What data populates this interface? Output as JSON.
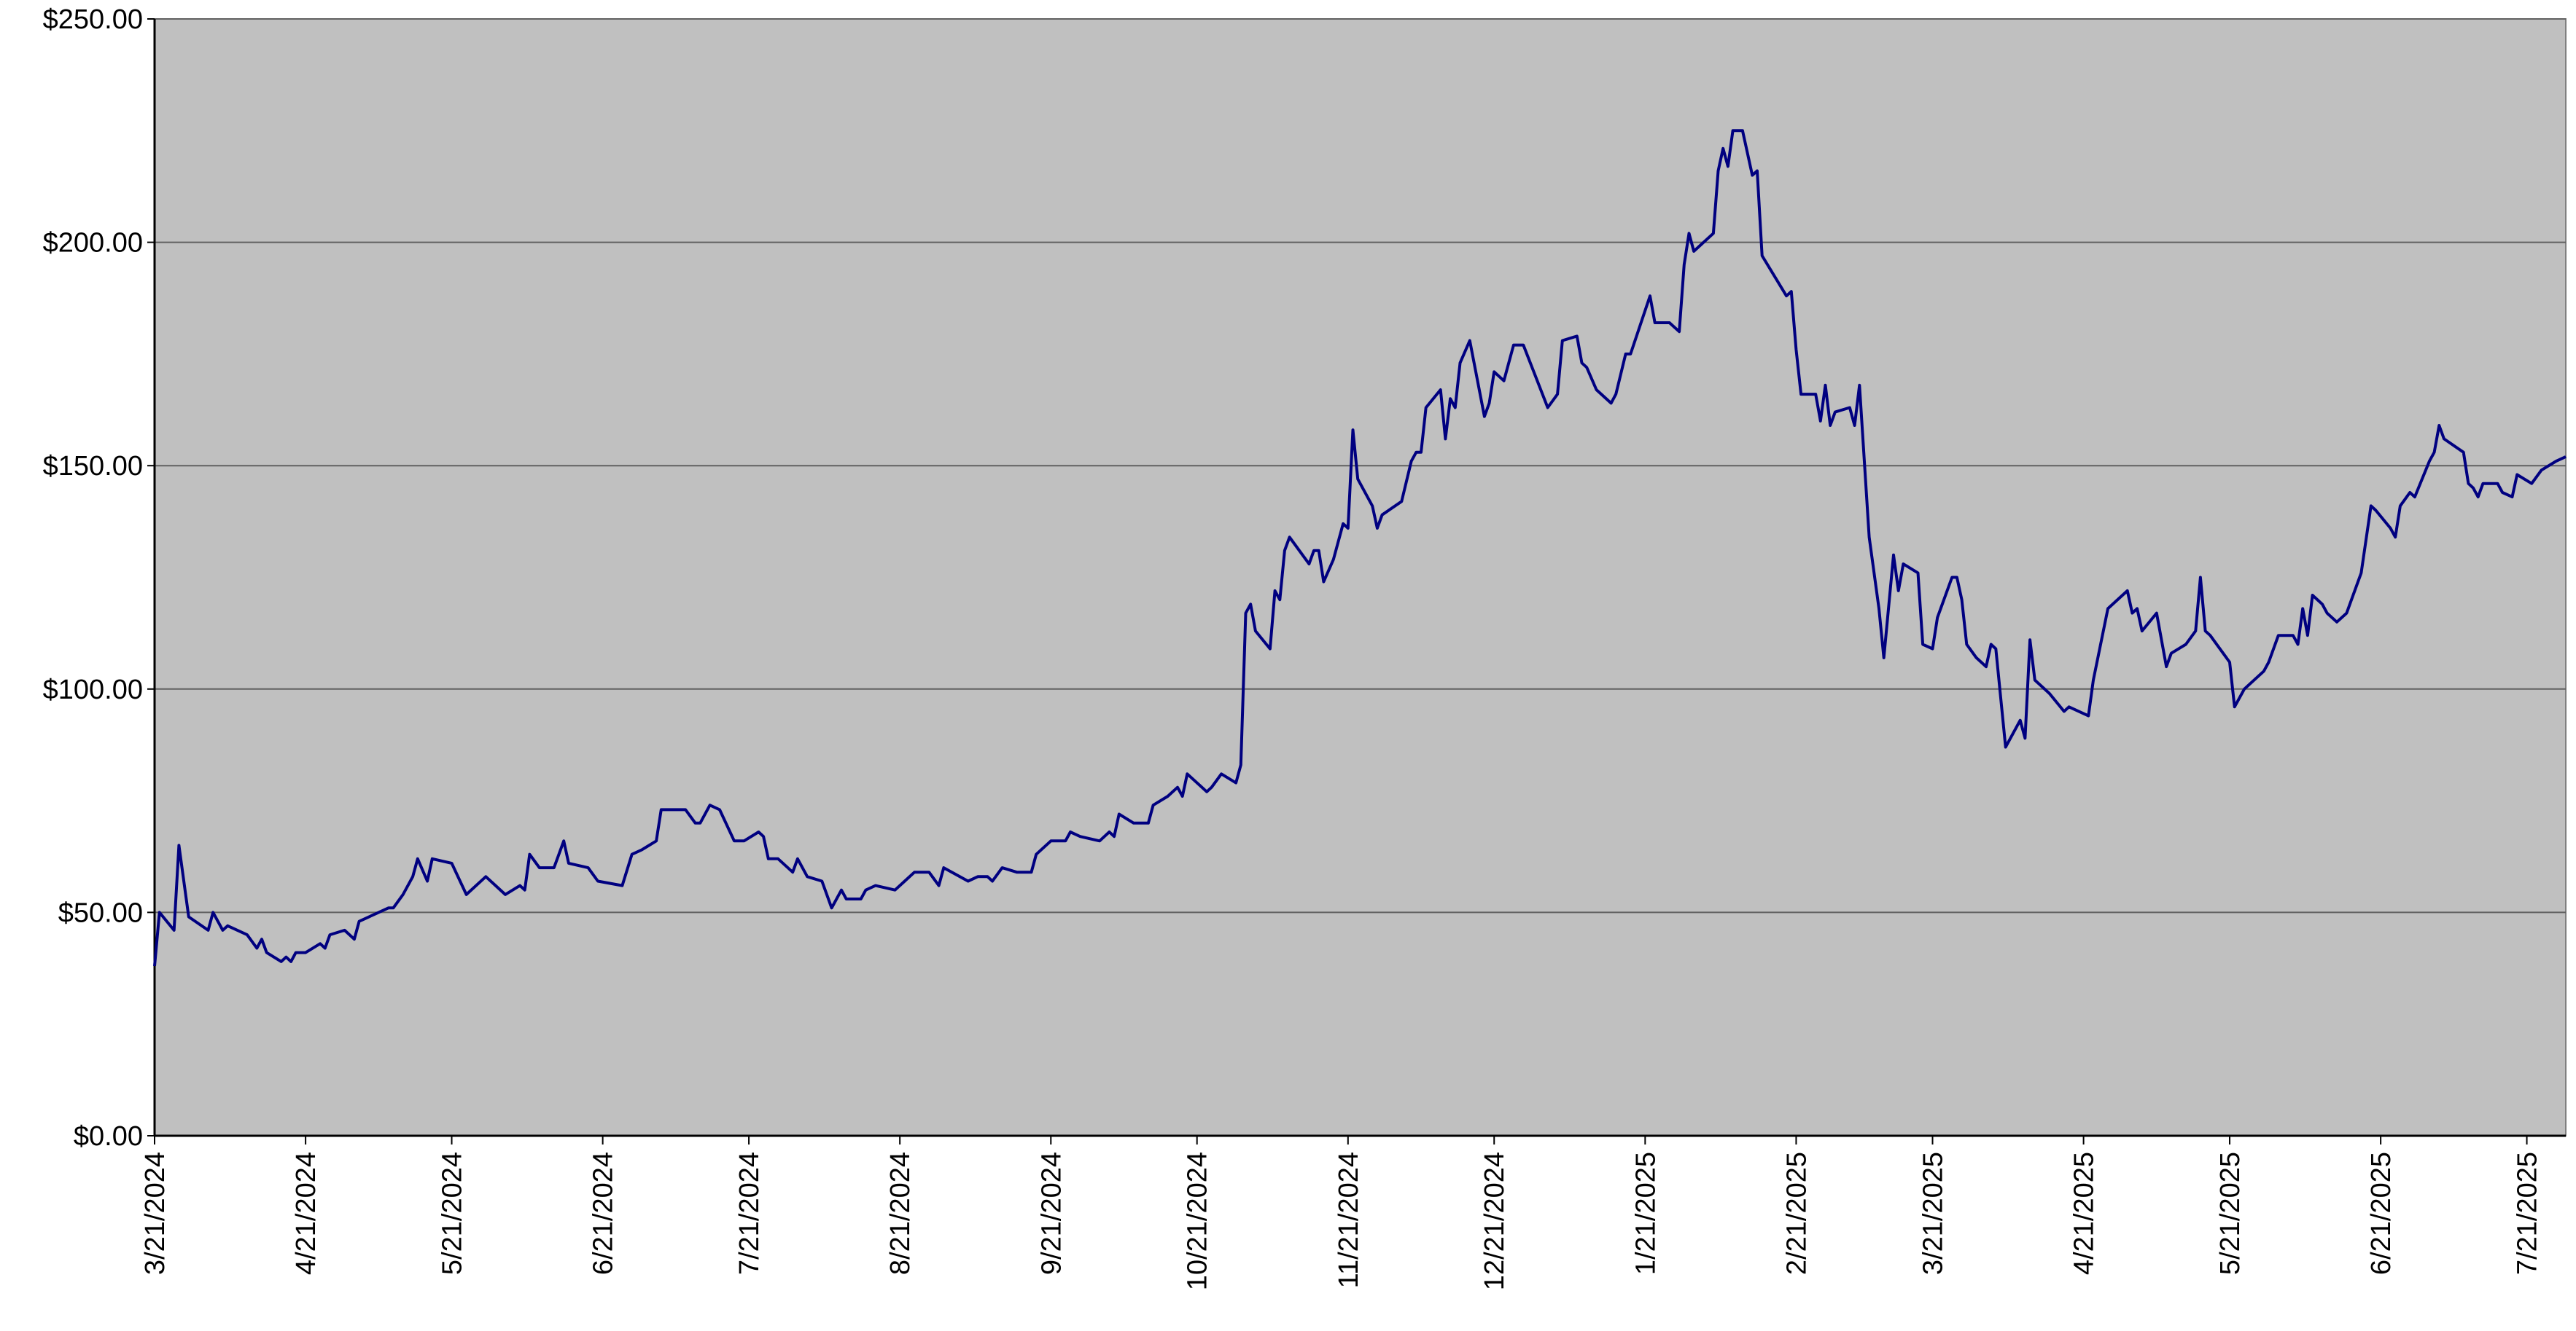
{
  "chart_data": {
    "type": "line",
    "x": [
      "3/21/2024",
      "3/22/2024",
      "3/25/2024",
      "3/26/2024",
      "3/28/2024",
      "4/1/2024",
      "4/2/2024",
      "4/4/2024",
      "4/5/2024",
      "4/9/2024",
      "4/11/2024",
      "4/12/2024",
      "4/13/2024",
      "4/16/2024",
      "4/17/2024",
      "4/18/2024",
      "4/19/2024",
      "4/21/2024",
      "4/24/2024",
      "4/25/2024",
      "4/26/2024",
      "4/29/2024",
      "5/1/2024",
      "5/2/2024",
      "5/6/2024",
      "5/8/2024",
      "5/9/2024",
      "5/11/2024",
      "5/13/2024",
      "5/14/2024",
      "5/16/2024",
      "5/17/2024",
      "5/21/2024",
      "5/24/2024",
      "5/28/2024",
      "5/30/2024",
      "6/1/2024",
      "6/4/2024",
      "6/5/2024",
      "6/6/2024",
      "6/8/2024",
      "6/11/2024",
      "6/13/2024",
      "6/14/2024",
      "6/18/2024",
      "6/20/2024",
      "6/25/2024",
      "6/27/2024",
      "6/29/2024",
      "7/2/2024",
      "7/3/2024",
      "7/5/2024",
      "7/8/2024",
      "7/10/2024",
      "7/11/2024",
      "7/13/2024",
      "7/15/2024",
      "7/18/2024",
      "7/20/2024",
      "7/23/2024",
      "7/24/2024",
      "7/25/2024",
      "7/27/2024",
      "7/30/2024",
      "7/31/2024",
      "8/2/2024",
      "8/5/2024",
      "8/7/2024",
      "8/9/2024",
      "8/10/2024",
      "8/13/2024",
      "8/14/2024",
      "8/16/2024",
      "8/20/2024",
      "8/22/2024",
      "8/24/2024",
      "8/27/2024",
      "8/29/2024",
      "8/30/2024",
      "9/4/2024",
      "9/6/2024",
      "9/8/2024",
      "9/9/2024",
      "9/11/2024",
      "9/14/2024",
      "9/17/2024",
      "9/18/2024",
      "9/21/2024",
      "9/24/2024",
      "9/25/2024",
      "9/27/2024",
      "10/1/2024",
      "10/3/2024",
      "10/4/2024",
      "10/5/2024",
      "10/8/2024",
      "10/11/2024",
      "10/12/2024",
      "10/15/2024",
      "10/17/2024",
      "10/18/2024",
      "10/19/2024",
      "10/23/2024",
      "10/24/2024",
      "10/26/2024",
      "10/29/2024",
      "10/30/2024",
      "10/31/2024",
      "11/1/2024",
      "11/2/2024",
      "11/5/2024",
      "11/6/2024",
      "11/7/2024",
      "11/8/2024",
      "11/9/2024",
      "11/13/2024",
      "11/14/2024",
      "11/15/2024",
      "11/16/2024",
      "11/18/2024",
      "11/20/2024",
      "11/21/2024",
      "11/22/2024",
      "11/23/2024",
      "11/26/2024",
      "11/27/2024",
      "11/28/2024",
      "12/2/2024",
      "12/4/2024",
      "12/5/2024",
      "12/6/2024",
      "12/7/2024",
      "12/10/2024",
      "12/11/2024",
      "12/12/2024",
      "12/13/2024",
      "12/14/2024",
      "12/16/2024",
      "12/19/2024",
      "12/20/2024",
      "12/21/2024",
      "12/23/2024",
      "12/25/2024",
      "12/27/2024",
      "1/1/2025",
      "1/3/2025",
      "1/4/2025",
      "1/7/2025",
      "1/8/2025",
      "1/9/2025",
      "1/11/2025",
      "1/14/2025",
      "1/15/2025",
      "1/17/2025",
      "1/18/2025",
      "1/22/2025",
      "1/23/2025",
      "1/26/2025",
      "1/28/2025",
      "1/29/2025",
      "1/30/2025",
      "1/31/2025",
      "2/4/2025",
      "2/5/2025",
      "2/6/2025",
      "2/7/2025",
      "2/8/2025",
      "2/10/2025",
      "2/12/2025",
      "2/13/2025",
      "2/14/2025",
      "2/19/2025",
      "2/20/2025",
      "2/21/2025",
      "2/22/2025",
      "2/25/2025",
      "2/26/2025",
      "2/27/2025",
      "2/28/2025",
      "3/1/2025",
      "3/4/2025",
      "3/5/2025",
      "3/6/2025",
      "3/8/2025",
      "3/10/2025",
      "3/11/2025",
      "3/13/2025",
      "3/14/2025",
      "3/15/2025",
      "3/18/2025",
      "3/19/2025",
      "3/21/2025",
      "3/22/2025",
      "3/25/2025",
      "3/26/2025",
      "3/27/2025",
      "3/28/2025",
      "3/30/2025",
      "4/1/2025",
      "4/2/2025",
      "4/3/2025",
      "4/5/2025",
      "4/8/2025",
      "4/9/2025",
      "4/10/2025",
      "4/11/2025",
      "4/14/2025",
      "4/17/2025",
      "4/18/2025",
      "4/22/2025",
      "4/23/2025",
      "4/26/2025",
      "4/30/2025",
      "5/1/2025",
      "5/2/2025",
      "5/3/2025",
      "5/6/2025",
      "5/8/2025",
      "5/9/2025",
      "5/12/2025",
      "5/14/2025",
      "5/15/2025",
      "5/16/2025",
      "5/17/2025",
      "5/21/2025",
      "5/22/2025",
      "5/24/2025",
      "5/28/2025",
      "5/29/2025",
      "5/31/2025",
      "6/3/2025",
      "6/4/2025",
      "6/5/2025",
      "6/6/2025",
      "6/7/2025",
      "6/9/2025",
      "6/10/2025",
      "6/12/2025",
      "6/14/2025",
      "6/17/2025",
      "6/19/2025",
      "6/20/2025",
      "6/23/2025",
      "6/24/2025",
      "6/25/2025",
      "6/27/2025",
      "6/28/2025",
      "7/1/2025",
      "7/2/2025",
      "7/3/2025",
      "7/4/2025",
      "7/8/2025",
      "7/9/2025",
      "7/10/2025",
      "7/11/2025",
      "7/12/2025",
      "7/15/2025",
      "7/16/2025",
      "7/18/2025",
      "7/19/2025",
      "7/22/2025",
      "7/24/2025",
      "7/27/2025",
      "7/29/2025"
    ],
    "series": [
      {
        "color": "#000080",
        "values": [
          38,
          50,
          46,
          65,
          49,
          46,
          50,
          46,
          47,
          45,
          42,
          44,
          41,
          39,
          40,
          39,
          41,
          41,
          43,
          42,
          45,
          46,
          44,
          48,
          50,
          51,
          51,
          54,
          58,
          62,
          57,
          62,
          61,
          54,
          58,
          56,
          54,
          56,
          55,
          63,
          60,
          60,
          66,
          61,
          60,
          57,
          56,
          63,
          64,
          66,
          73,
          73,
          73,
          70,
          70,
          74,
          73,
          66,
          66,
          68,
          67,
          62,
          62,
          59,
          62,
          58,
          57,
          51,
          55,
          53,
          53,
          55,
          56,
          55,
          57,
          59,
          59,
          56,
          60,
          57,
          58,
          58,
          57,
          60,
          59,
          59,
          63,
          66,
          66,
          68,
          67,
          66,
          68,
          67,
          72,
          70,
          70,
          74,
          76,
          78,
          76,
          81,
          77,
          78,
          81,
          79,
          83,
          117,
          119,
          113,
          109,
          122,
          120,
          131,
          134,
          128,
          131,
          131,
          124,
          129,
          137,
          136,
          158,
          147,
          141,
          136,
          139,
          142,
          151,
          153,
          153,
          163,
          167,
          156,
          165,
          163,
          173,
          178,
          161,
          164,
          171,
          169,
          177,
          177,
          163,
          166,
          178,
          179,
          173,
          172,
          167,
          164,
          166,
          175,
          175,
          188,
          182,
          182,
          180,
          195,
          202,
          198,
          202,
          216,
          221,
          217,
          225,
          225,
          215,
          216,
          197,
          188,
          189,
          176,
          166,
          166,
          160,
          168,
          159,
          162,
          163,
          159,
          168,
          134,
          118,
          107,
          130,
          122,
          128,
          126,
          110,
          109,
          116,
          125,
          125,
          120,
          110,
          107,
          105,
          110,
          109,
          87,
          93,
          89,
          111,
          102,
          99,
          95,
          96,
          94,
          102,
          118,
          122,
          117,
          118,
          113,
          117,
          105,
          108,
          110,
          113,
          125,
          113,
          112,
          106,
          96,
          100,
          104,
          106,
          112,
          112,
          110,
          118,
          112,
          121,
          119,
          117,
          115,
          117,
          126,
          141,
          140,
          136,
          134,
          141,
          144,
          143,
          151,
          153,
          159,
          156,
          153,
          146,
          145,
          143,
          146,
          146,
          144,
          143,
          148,
          146,
          149,
          151,
          152
        ]
      }
    ],
    "xlim": [
      "3/21/2024",
      "7/29/2025"
    ],
    "xticks": [
      "3/21/2024",
      "4/21/2024",
      "5/21/2024",
      "6/21/2024",
      "7/21/2024",
      "8/21/2024",
      "9/21/2024",
      "10/21/2024",
      "11/21/2024",
      "12/21/2024",
      "1/21/2025",
      "2/21/2025",
      "3/21/2025",
      "4/21/2025",
      "5/21/2025",
      "6/21/2025",
      "7/21/2025"
    ],
    "ylim": [
      0,
      250
    ],
    "yticks": [
      {
        "value": 0,
        "label": "$0.00"
      },
      {
        "value": 50,
        "label": "$50.00"
      },
      {
        "value": 100,
        "label": "$100.00"
      },
      {
        "value": 150,
        "label": "$150.00"
      },
      {
        "value": 200,
        "label": "$200.00"
      },
      {
        "value": 250,
        "label": "$250.00"
      }
    ],
    "grid": true
  }
}
